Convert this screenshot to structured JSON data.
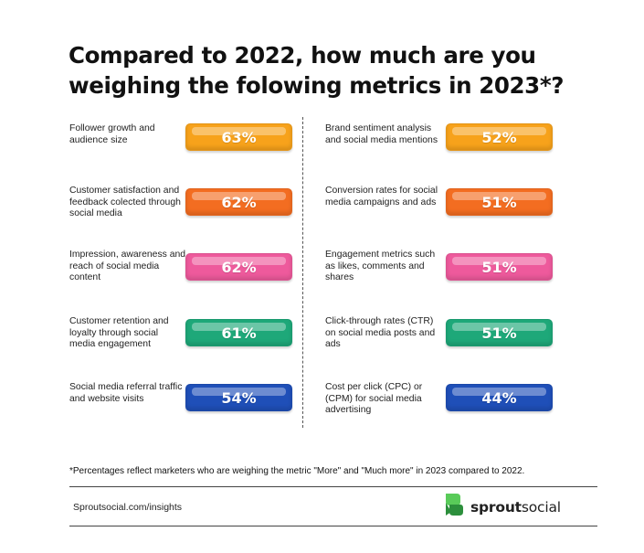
{
  "title": {
    "line1": "Compared to 2022, how much are you",
    "line2": "weighing the folowing metrics in 2023*?"
  },
  "metrics": [
    {
      "label": "Follower growth and audience size",
      "value": "63%",
      "color": "#f7a21b"
    },
    {
      "label": "Customer satisfaction and feedback colected through social media",
      "value": "62%",
      "color": "#f36d21"
    },
    {
      "label": "Impression, awareness and reach of social media content",
      "value": "62%",
      "color": "#ee5a9c"
    },
    {
      "label": "Customer retention and loyalty through social media engagement",
      "value": "61%",
      "color": "#1ea879"
    },
    {
      "label": "Social media referral traffic and website visits",
      "value": "54%",
      "color": "#1f4fb8"
    },
    {
      "label": "Brand sentiment analysis and social media mentions",
      "value": "52%",
      "color": "#f7a21b"
    },
    {
      "label": "Conversion rates for social media campaigns and ads",
      "value": "51%",
      "color": "#f36d21"
    },
    {
      "label": "Engagement metrics such as likes, comments and shares",
      "value": "51%",
      "color": "#ee5a9c"
    },
    {
      "label": "Click-through rates (CTR) on social media posts and ads",
      "value": "51%",
      "color": "#1ea879"
    },
    {
      "label": "Cost per click (CPC) or (CPM) for social media advertising",
      "value": "44%",
      "color": "#1f4fb8"
    }
  ],
  "footnote": "*Percentages reflect marketers who are weighing the metric \"More\" and \"Much more\" in 2023 compared to 2022.",
  "footer": {
    "url": "Sproutsocial.com/insights",
    "brand_bold": "sprout",
    "brand_regular": "social"
  }
}
